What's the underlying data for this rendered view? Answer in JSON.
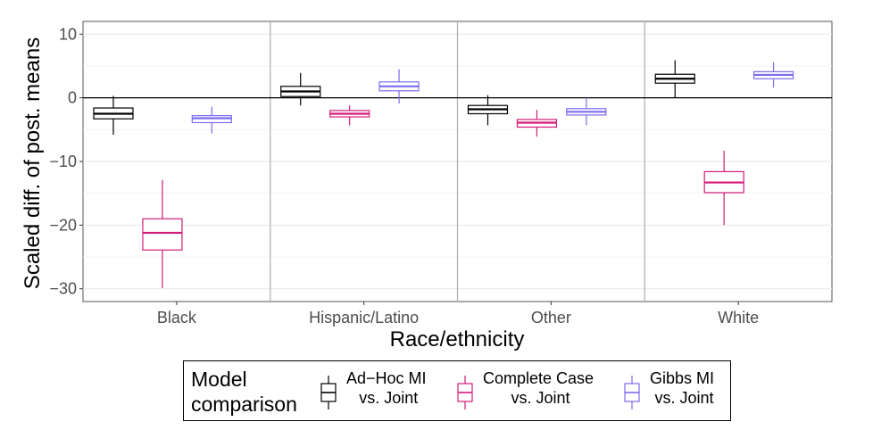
{
  "chart_data": {
    "type": "boxplot",
    "xlabel": "Race/ethnicity",
    "ylabel": "Scaled diff. of post. means",
    "ylim": [
      -32,
      12
    ],
    "yticks": [
      10,
      0,
      -10,
      -20,
      -30
    ],
    "ytick_labels": [
      "10",
      "0",
      "−10",
      "−20",
      "−30"
    ],
    "reference_line": 0,
    "categories": [
      "Black",
      "Hispanic/Latino",
      "Other",
      "White"
    ],
    "legend": {
      "title": "Model\ncomparison",
      "position": "bottom"
    },
    "series": [
      {
        "name": "Ad−Hoc MI\n vs. Joint",
        "color": "#000000",
        "boxes": [
          {
            "whisker_low": -5.8,
            "q1": -3.3,
            "median": -2.5,
            "q3": -1.6,
            "whisker_high": 0.3
          },
          {
            "whisker_low": -1.2,
            "q1": 0.2,
            "median": 1.0,
            "q3": 1.8,
            "whisker_high": 3.9
          },
          {
            "whisker_low": -4.3,
            "q1": -2.5,
            "median": -1.8,
            "q3": -1.2,
            "whisker_high": 0.4
          },
          {
            "whisker_low": 0.0,
            "q1": 2.3,
            "median": 3.0,
            "q3": 3.7,
            "whisker_high": 5.9
          }
        ]
      },
      {
        "name": "Complete Case\n vs. Joint",
        "color": "#d41b7a",
        "boxes": [
          {
            "whisker_low": -29.9,
            "q1": -23.9,
            "median": -21.2,
            "q3": -19.0,
            "whisker_high": -12.9
          },
          {
            "whisker_low": -4.3,
            "q1": -3.0,
            "median": -2.5,
            "q3": -2.0,
            "whisker_high": -1.2
          },
          {
            "whisker_low": -6.1,
            "q1": -4.6,
            "median": -3.9,
            "q3": -3.4,
            "whisker_high": -1.9
          },
          {
            "whisker_low": -20.0,
            "q1": -14.9,
            "median": -13.3,
            "q3": -11.6,
            "whisker_high": -8.3
          }
        ]
      },
      {
        "name": "Gibbs MI\n vs. Joint",
        "color": "#7b6cf0",
        "boxes": [
          {
            "whisker_low": -5.6,
            "q1": -3.9,
            "median": -3.2,
            "q3": -2.8,
            "whisker_high": -1.4
          },
          {
            "whisker_low": -0.9,
            "q1": 1.1,
            "median": 1.8,
            "q3": 2.5,
            "whisker_high": 4.5
          },
          {
            "whisker_low": -4.3,
            "q1": -2.7,
            "median": -2.2,
            "q3": -1.7,
            "whisker_high": 0.0
          },
          {
            "whisker_low": 1.6,
            "q1": 3.0,
            "median": 3.6,
            "q3": 4.1,
            "whisker_high": 5.6
          }
        ]
      }
    ],
    "grid": true,
    "facet_dividers": true
  }
}
